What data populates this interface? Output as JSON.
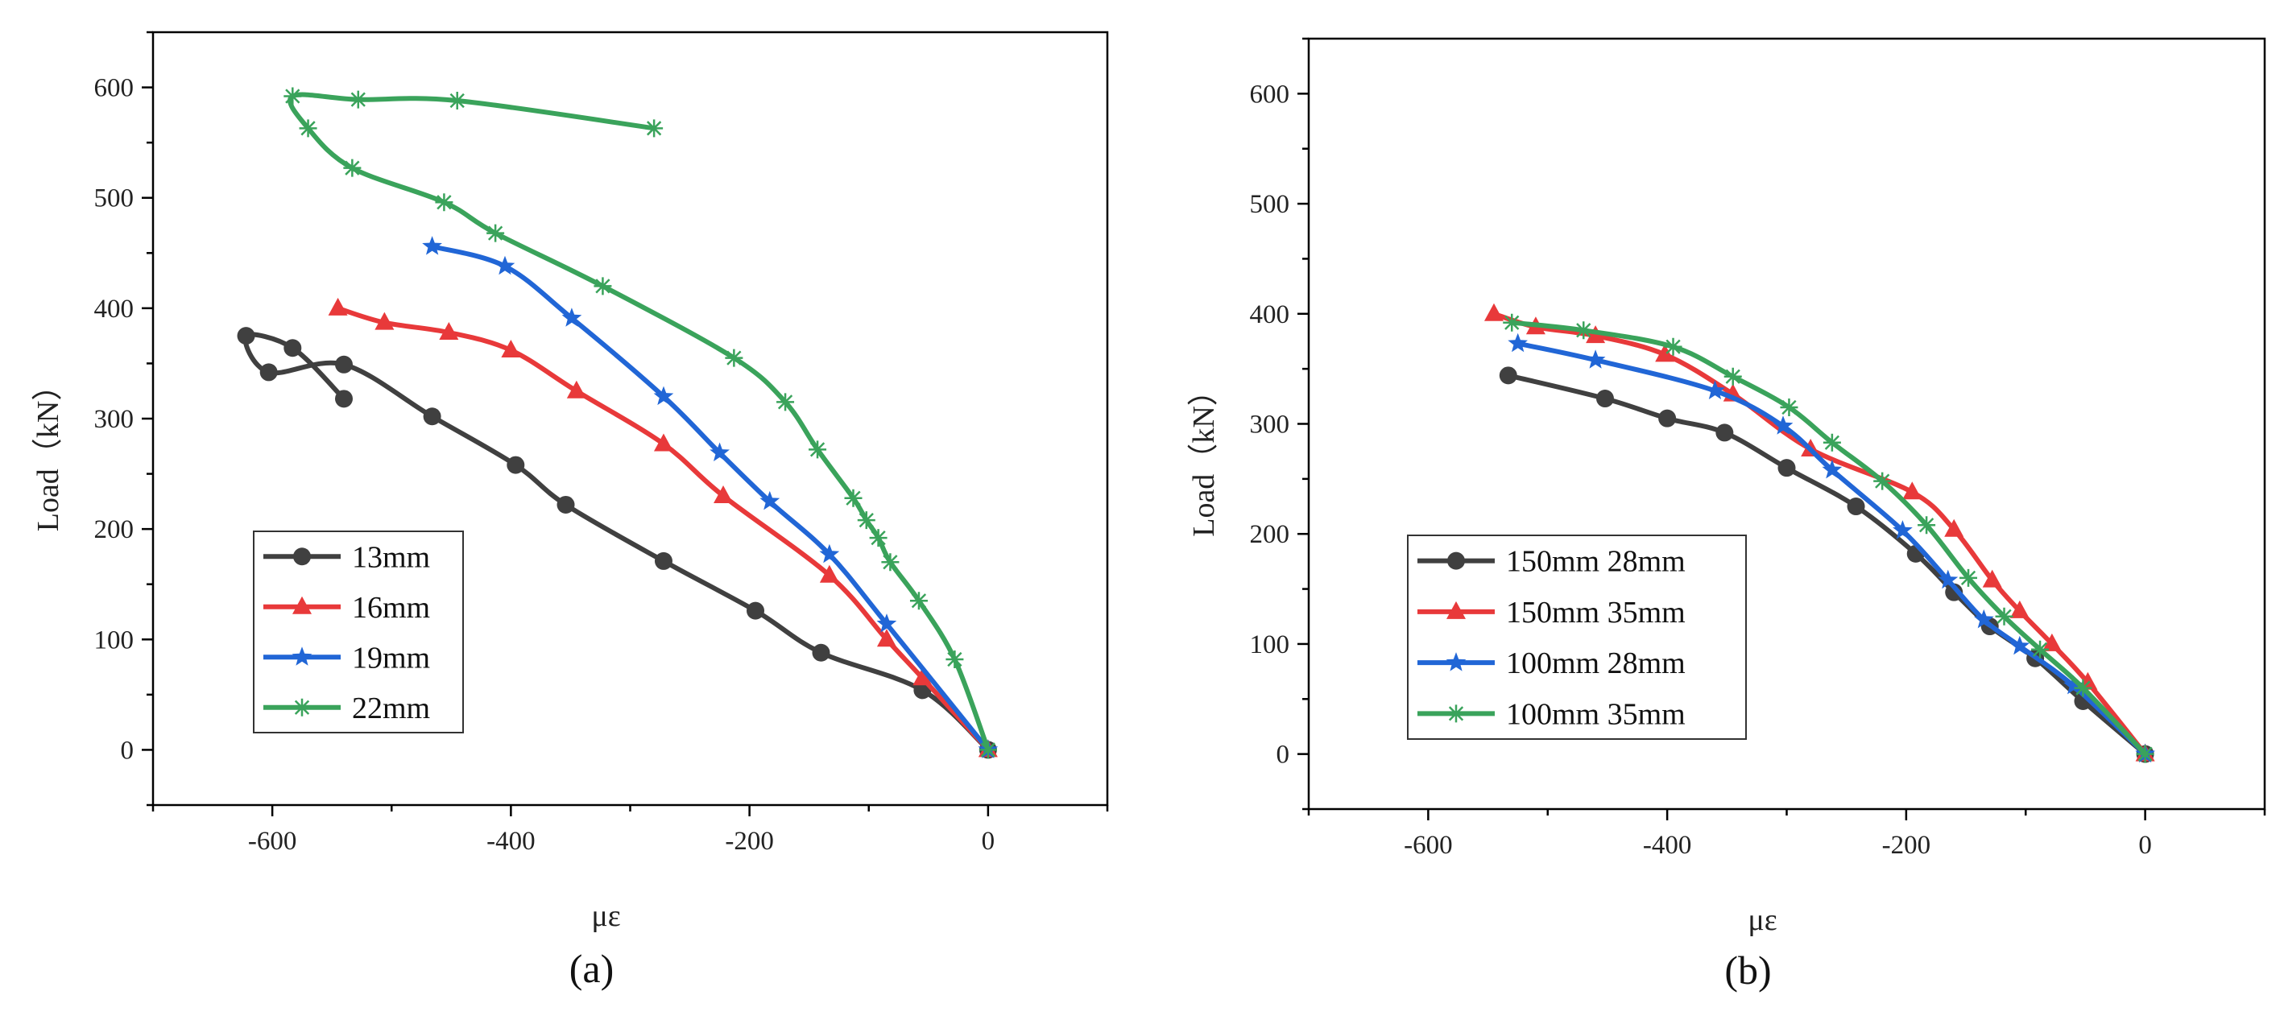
{
  "chart_data": [
    {
      "type": "line",
      "panel_label": "(a)",
      "xlabel": "με",
      "ylabel": "Load（kN）",
      "xlim": [
        -700,
        100
      ],
      "ylim": [
        -50,
        650
      ],
      "xticks": [
        -600,
        -400,
        -200,
        0
      ],
      "yticks": [
        0,
        100,
        200,
        300,
        400,
        500,
        600
      ],
      "legend_position": "bottom-left",
      "series": [
        {
          "name": "13mm",
          "color": "#404040",
          "marker": "circle",
          "x": [
            0,
            -55,
            -140,
            -195,
            -272,
            -354,
            -396,
            -466,
            -540,
            -603,
            -622,
            -583,
            -540
          ],
          "y": [
            0,
            54,
            88,
            126,
            171,
            222,
            258,
            302,
            349,
            342,
            375,
            364,
            318
          ]
        },
        {
          "name": "16mm",
          "color": "#e8393a",
          "marker": "triangle",
          "x": [
            0,
            -55,
            -85,
            -133,
            -222,
            -272,
            -345,
            -400,
            -452,
            -506,
            -545
          ],
          "y": [
            0,
            65,
            100,
            158,
            230,
            277,
            325,
            362,
            378,
            387,
            400
          ]
        },
        {
          "name": "19mm",
          "color": "#2166d6",
          "marker": "star",
          "x": [
            0,
            -85,
            -133,
            -183,
            -225,
            -272,
            -349,
            -405,
            -466
          ],
          "y": [
            0,
            114,
            177,
            225,
            269,
            320,
            391,
            438,
            456
          ]
        },
        {
          "name": "22mm",
          "color": "#3aa35b",
          "marker": "asterisk",
          "x": [
            0,
            -28,
            -58,
            -82,
            -92,
            -102,
            -113,
            -143,
            -170,
            -213,
            -323,
            -413,
            -456,
            -533,
            -570,
            -583,
            -528,
            -445,
            -280
          ],
          "y": [
            0,
            82,
            135,
            170,
            192,
            208,
            228,
            272,
            315,
            355,
            420,
            468,
            496,
            527,
            563,
            592,
            589,
            588,
            563
          ]
        }
      ]
    },
    {
      "type": "line",
      "panel_label": "(b)",
      "xlabel": "με",
      "ylabel": "Load（kN）",
      "xlim": [
        -700,
        100
      ],
      "ylim": [
        -50,
        650
      ],
      "xticks": [
        -600,
        -400,
        -200,
        0
      ],
      "yticks": [
        0,
        100,
        200,
        300,
        400,
        500,
        600
      ],
      "legend_position": "bottom-left",
      "series": [
        {
          "name": "150mm 28mm",
          "color": "#404040",
          "marker": "circle",
          "x": [
            0,
            -52,
            -92,
            -130,
            -160,
            -192,
            -242,
            -300,
            -352,
            -400,
            -452,
            -533
          ],
          "y": [
            0,
            48,
            87,
            116,
            147,
            182,
            225,
            260,
            292,
            305,
            323,
            344
          ]
        },
        {
          "name": "150mm 35mm",
          "color": "#e8393a",
          "marker": "triangle",
          "x": [
            0,
            -48,
            -78,
            -105,
            -128,
            -160,
            -195,
            -280,
            -345,
            -402,
            -460,
            -510,
            -545
          ],
          "y": [
            0,
            65,
            100,
            130,
            158,
            204,
            238,
            277,
            327,
            363,
            380,
            388,
            400
          ]
        },
        {
          "name": "100mm 28mm",
          "color": "#2166d6",
          "marker": "star",
          "x": [
            0,
            -60,
            -105,
            -135,
            -165,
            -203,
            -262,
            -303,
            -360,
            -460,
            -525
          ],
          "y": [
            0,
            62,
            98,
            122,
            158,
            203,
            258,
            298,
            330,
            358,
            373
          ]
        },
        {
          "name": "100mm 35mm",
          "color": "#3aa35b",
          "marker": "asterisk",
          "x": [
            0,
            -52,
            -88,
            -118,
            -148,
            -183,
            -220,
            -262,
            -298,
            -345,
            -395,
            -470,
            -530
          ],
          "y": [
            0,
            60,
            95,
            125,
            160,
            208,
            248,
            283,
            315,
            343,
            370,
            385,
            392
          ]
        }
      ]
    }
  ]
}
